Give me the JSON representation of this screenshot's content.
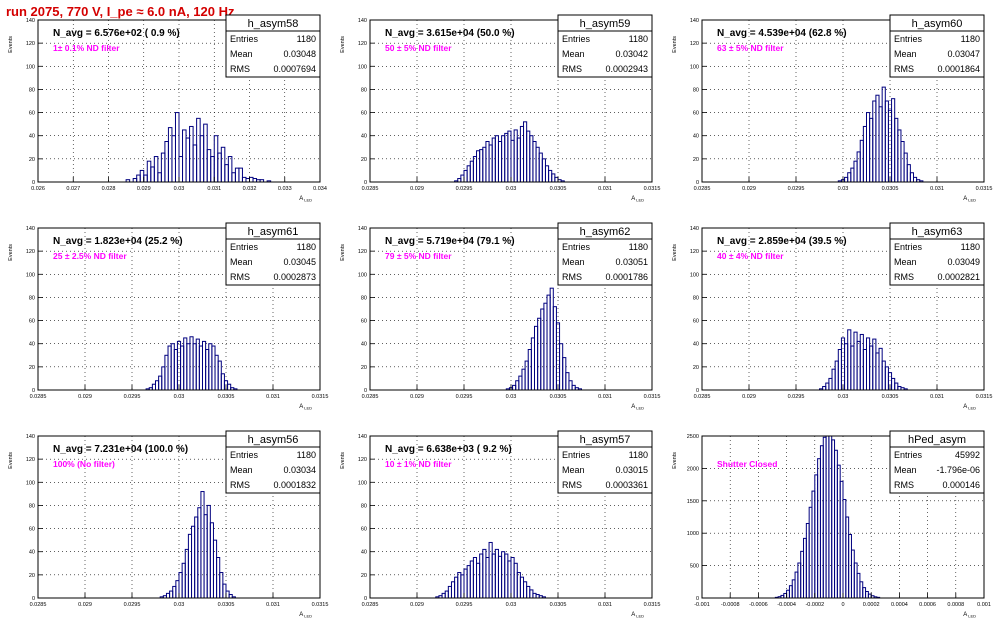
{
  "page": {
    "title": "run 2075,   770 V, I_pe ≈ 6.0 nA, 120 Hz",
    "title_color": "#d40000",
    "hist_color": "#00007f",
    "annotation_color": "#ff00ff",
    "grid": true
  },
  "chart_data": [
    {
      "type": "histogram",
      "name": "h_asym58",
      "stats": {
        "Entries": "1180",
        "Mean": "0.03048",
        "RMS": "0.0007694"
      },
      "navg": "N_avg = 6.576e+02 ( 0.9 %)",
      "filter": "1± 0.1% ND filter",
      "ylabel": "Events",
      "xlabel": "A",
      "xlabel_sub": "LED",
      "xlim": [
        0.026,
        0.034
      ],
      "ylim": [
        0,
        140
      ],
      "xticks": [
        0.026,
        0.027,
        0.028,
        0.029,
        0.03,
        0.031,
        0.032,
        0.033,
        0.034
      ],
      "xtick_labels": [
        "0.026",
        "0.027",
        "0.028",
        "0.029",
        "0.03",
        "0.031",
        "0.032",
        "0.033",
        "0.034"
      ],
      "yticks": [
        0,
        20,
        40,
        60,
        80,
        100,
        120,
        140
      ],
      "bins": {
        "start": 0.0285,
        "width": 0.0001,
        "counts": [
          2,
          0,
          3,
          6,
          10,
          6,
          18,
          13,
          22,
          8,
          25,
          35,
          47,
          40,
          60,
          22,
          45,
          38,
          48,
          32,
          55,
          40,
          50,
          28,
          22,
          40,
          25,
          30,
          15,
          22,
          8,
          12,
          12,
          4,
          3,
          4,
          3,
          2,
          2,
          0,
          1,
          0
        ]
      }
    },
    {
      "type": "histogram",
      "name": "h_asym59",
      "stats": {
        "Entries": "1180",
        "Mean": "0.03042",
        "RMS": "0.0002943"
      },
      "navg": "N_avg = 3.615e+04 (50.0 %)",
      "filter": "50 ± 5% ND filter",
      "ylabel": "Events",
      "xlabel": "A",
      "xlabel_sub": "LED",
      "xlim": [
        0.0285,
        0.0315
      ],
      "ylim": [
        0,
        140
      ],
      "xticks": [
        0.0285,
        0.029,
        0.0295,
        0.03,
        0.0305,
        0.031,
        0.0315
      ],
      "xtick_labels": [
        "0.0285",
        "0.029",
        "0.0295",
        "0.03",
        "0.0305",
        "0.031",
        "0.0315"
      ],
      "yticks": [
        0,
        20,
        40,
        60,
        80,
        100,
        120,
        140
      ],
      "bins": {
        "start": 0.0294,
        "width": 3.333e-05,
        "counts": [
          1,
          3,
          6,
          10,
          14,
          18,
          22,
          27,
          28,
          30,
          35,
          32,
          38,
          40,
          35,
          40,
          42,
          44,
          36,
          45,
          38,
          48,
          52,
          44,
          40,
          35,
          30,
          25,
          20,
          14,
          10,
          7,
          4,
          2,
          1
        ]
      }
    },
    {
      "type": "histogram",
      "name": "h_asym60",
      "stats": {
        "Entries": "1180",
        "Mean": "0.03047",
        "RMS": "0.0001864"
      },
      "navg": "N_avg = 4.539e+04 (62.8 %)",
      "filter": "63 ± 5% ND filter",
      "ylabel": "Events",
      "xlabel": "A",
      "xlabel_sub": "LED",
      "xlim": [
        0.0285,
        0.0315
      ],
      "ylim": [
        0,
        140
      ],
      "xticks": [
        0.0285,
        0.029,
        0.0295,
        0.03,
        0.0305,
        0.031,
        0.0315
      ],
      "xtick_labels": [
        "0.0285",
        "0.029",
        "0.0295",
        "0.03",
        "0.0305",
        "0.031",
        "0.0315"
      ],
      "yticks": [
        0,
        20,
        40,
        60,
        80,
        100,
        120,
        140
      ],
      "bins": {
        "start": 0.02995,
        "width": 3.333e-05,
        "counts": [
          1,
          2,
          4,
          8,
          12,
          18,
          26,
          36,
          48,
          60,
          55,
          70,
          75,
          65,
          82,
          70,
          62,
          72,
          55,
          45,
          35,
          25,
          15,
          8,
          4,
          2,
          1
        ]
      }
    },
    {
      "type": "histogram",
      "name": "h_asym61",
      "stats": {
        "Entries": "1180",
        "Mean": "0.03045",
        "RMS": "0.0002873"
      },
      "navg": "N_avg = 1.823e+04 (25.2 %)",
      "filter": "25 ± 2.5% ND filter",
      "ylabel": "Events",
      "xlabel": "A",
      "xlabel_sub": "LED",
      "xlim": [
        0.0285,
        0.0315
      ],
      "ylim": [
        0,
        140
      ],
      "xticks": [
        0.0285,
        0.029,
        0.0295,
        0.03,
        0.0305,
        0.031,
        0.0315
      ],
      "xtick_labels": [
        "0.0285",
        "0.029",
        "0.0295",
        "0.03",
        "0.0305",
        "0.031",
        "0.0315"
      ],
      "yticks": [
        0,
        20,
        40,
        60,
        80,
        100,
        120,
        140
      ],
      "bins": {
        "start": 0.02965,
        "width": 3.333e-05,
        "counts": [
          1,
          2,
          5,
          8,
          12,
          20,
          30,
          38,
          40,
          35,
          42,
          38,
          45,
          40,
          46,
          40,
          44,
          38,
          42,
          35,
          40,
          38,
          30,
          25,
          14,
          8,
          5,
          2,
          1
        ]
      }
    },
    {
      "type": "histogram",
      "name": "h_asym62",
      "stats": {
        "Entries": "1180",
        "Mean": "0.03051",
        "RMS": "0.0001786"
      },
      "navg": "N_avg = 5.719e+04 (79.1 %)",
      "filter": "79 ± 5% ND filter",
      "ylabel": "Events",
      "xlabel": "A",
      "xlabel_sub": "LED",
      "xlim": [
        0.0285,
        0.0315
      ],
      "ylim": [
        0,
        140
      ],
      "xticks": [
        0.0285,
        0.029,
        0.0295,
        0.03,
        0.0305,
        0.031,
        0.0315
      ],
      "xtick_labels": [
        "0.0285",
        "0.029",
        "0.0295",
        "0.03",
        "0.0305",
        "0.031",
        "0.0315"
      ],
      "yticks": [
        0,
        20,
        40,
        60,
        80,
        100,
        120,
        140
      ],
      "bins": {
        "start": 0.02995,
        "width": 3.333e-05,
        "counts": [
          1,
          2,
          4,
          8,
          12,
          18,
          25,
          35,
          45,
          55,
          62,
          70,
          75,
          82,
          88,
          72,
          58,
          40,
          28,
          15,
          8,
          4,
          2,
          1
        ]
      }
    },
    {
      "type": "histogram",
      "name": "h_asym63",
      "stats": {
        "Entries": "1180",
        "Mean": "0.03049",
        "RMS": "0.0002821"
      },
      "navg": "N_avg = 2.859e+04 (39.5 %)",
      "filter": "40 ± 4% ND filter",
      "ylabel": "Events",
      "xlabel": "A",
      "xlabel_sub": "LED",
      "xlim": [
        0.0285,
        0.0315
      ],
      "ylim": [
        0,
        140
      ],
      "xticks": [
        0.0285,
        0.029,
        0.0295,
        0.03,
        0.0305,
        0.031,
        0.0315
      ],
      "xtick_labels": [
        "0.0285",
        "0.029",
        "0.0295",
        "0.03",
        "0.0305",
        "0.031",
        "0.0315"
      ],
      "yticks": [
        0,
        20,
        40,
        60,
        80,
        100,
        120,
        140
      ],
      "bins": {
        "start": 0.02975,
        "width": 3.333e-05,
        "counts": [
          1,
          3,
          6,
          10,
          18,
          25,
          35,
          45,
          40,
          52,
          38,
          50,
          42,
          48,
          35,
          45,
          38,
          44,
          32,
          36,
          25,
          20,
          15,
          10,
          6,
          3,
          2,
          1
        ]
      }
    },
    {
      "type": "histogram",
      "name": "h_asym56",
      "stats": {
        "Entries": "1180",
        "Mean": "0.03034",
        "RMS": "0.0001832"
      },
      "navg": "N_avg = 7.231e+04 (100.0 %)",
      "filter": "100% (No filter)",
      "ylabel": "Events",
      "xlabel": "A",
      "xlabel_sub": "LED",
      "xlim": [
        0.0285,
        0.0315
      ],
      "ylim": [
        0,
        140
      ],
      "xticks": [
        0.0285,
        0.029,
        0.0295,
        0.03,
        0.0305,
        0.031,
        0.0315
      ],
      "xtick_labels": [
        "0.0285",
        "0.029",
        "0.0295",
        "0.03",
        "0.0305",
        "0.031",
        "0.0315"
      ],
      "yticks": [
        0,
        20,
        40,
        60,
        80,
        100,
        120,
        140
      ],
      "bins": {
        "start": 0.0298,
        "width": 3.333e-05,
        "counts": [
          1,
          2,
          4,
          6,
          10,
          15,
          22,
          30,
          42,
          55,
          62,
          70,
          78,
          92,
          72,
          80,
          65,
          50,
          35,
          22,
          12,
          6,
          3,
          1
        ]
      }
    },
    {
      "type": "histogram",
      "name": "h_asym57",
      "stats": {
        "Entries": "1180",
        "Mean": "0.03015",
        "RMS": "0.0003361"
      },
      "navg": "N_avg = 6.638e+03 ( 9.2 %)",
      "filter": "10 ± 1% ND filter",
      "ylabel": "Events",
      "xlabel": "A",
      "xlabel_sub": "LED",
      "xlim": [
        0.0285,
        0.0315
      ],
      "ylim": [
        0,
        140
      ],
      "xticks": [
        0.0285,
        0.029,
        0.0295,
        0.03,
        0.0305,
        0.031,
        0.0315
      ],
      "xtick_labels": [
        "0.0285",
        "0.029",
        "0.0295",
        "0.03",
        "0.0305",
        "0.031",
        "0.0315"
      ],
      "yticks": [
        0,
        20,
        40,
        60,
        80,
        100,
        120,
        140
      ],
      "bins": {
        "start": 0.0292,
        "width": 3.333e-05,
        "counts": [
          1,
          2,
          4,
          6,
          10,
          14,
          18,
          22,
          20,
          25,
          28,
          32,
          35,
          30,
          38,
          42,
          35,
          48,
          38,
          42,
          36,
          40,
          38,
          32,
          35,
          30,
          22,
          18,
          14,
          10,
          7,
          4,
          3,
          2,
          1
        ]
      }
    },
    {
      "type": "histogram",
      "name": "hPed_asym",
      "stats": {
        "Entries": "45992",
        "Mean": "-1.796e-06",
        "RMS": "0.000146"
      },
      "navg": "",
      "filter": "Shutter Closed",
      "ylabel": "Events",
      "xlabel": "A",
      "xlabel_sub": "LED",
      "xlim": [
        -0.001,
        0.001
      ],
      "ylim": [
        0,
        2500
      ],
      "xticks": [
        -0.001,
        -0.0008,
        -0.0006,
        -0.0004,
        -0.0002,
        0,
        0.0002,
        0.0004,
        0.0006,
        0.0008,
        0.001
      ],
      "xtick_labels": [
        "-0.001",
        "-0.0008",
        "-0.0006",
        "-0.0004",
        "-0.0002",
        "0",
        "0.0002",
        "0.0004",
        "0.0006",
        "0.0008",
        "0.001"
      ],
      "yticks": [
        0,
        500,
        1000,
        1500,
        2000,
        2500
      ],
      "bins": {
        "start": -0.00048,
        "width": 2e-05,
        "counts": [
          10,
          20,
          40,
          70,
          120,
          190,
          280,
          400,
          540,
          720,
          920,
          1150,
          1400,
          1650,
          1900,
          2150,
          2350,
          2480,
          2560,
          2540,
          2440,
          2280,
          2050,
          1800,
          1520,
          1250,
          980,
          740,
          540,
          380,
          250,
          160,
          100,
          60,
          35,
          18,
          10
        ]
      }
    }
  ]
}
